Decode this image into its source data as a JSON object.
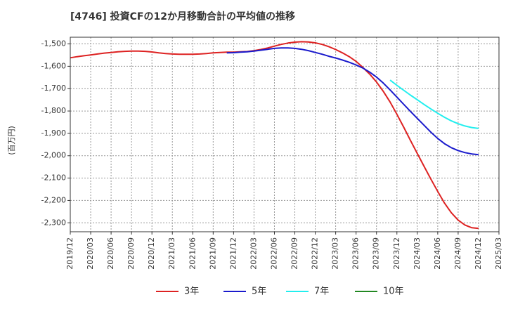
{
  "title": "[4746]  投資CFの12か月移動合計の平均値の推移",
  "chart_data": {
    "type": "line",
    "ylabel": "(百万円)",
    "ylim": [
      -2340,
      -1470
    ],
    "yticks": [
      -1500,
      -1600,
      -1700,
      -1800,
      -1900,
      -2000,
      -2100,
      -2200,
      -2300
    ],
    "ytick_labels": [
      "-1,500",
      "-1,600",
      "-1,700",
      "-1,800",
      "-1,900",
      "-2,000",
      "-2,100",
      "-2,200",
      "-2,300"
    ],
    "xticks": [
      "2019/12",
      "2020/03",
      "2020/06",
      "2020/09",
      "2020/12",
      "2021/03",
      "2021/06",
      "2021/09",
      "2021/12",
      "2022/03",
      "2022/06",
      "2022/09",
      "2022/12",
      "2023/03",
      "2023/06",
      "2023/09",
      "2023/12",
      "2024/03",
      "2024/06",
      "2024/09",
      "2024/12",
      "2025/03"
    ],
    "grid": true,
    "legend_position": "bottom",
    "series": [
      {
        "name": "3年",
        "color": "#dd2222",
        "start": "2019/12",
        "values": [
          -1562,
          -1557,
          -1553,
          -1549,
          -1545,
          -1541,
          -1538,
          -1535,
          -1533,
          -1532,
          -1532,
          -1533,
          -1536,
          -1540,
          -1543,
          -1545,
          -1546,
          -1546,
          -1546,
          -1545,
          -1543,
          -1540,
          -1538,
          -1537,
          -1537,
          -1535,
          -1534,
          -1530,
          -1525,
          -1518,
          -1510,
          -1502,
          -1496,
          -1492,
          -1490,
          -1491,
          -1495,
          -1502,
          -1512,
          -1525,
          -1540,
          -1557,
          -1578,
          -1605,
          -1635,
          -1670,
          -1712,
          -1760,
          -1815,
          -1872,
          -1932,
          -1990,
          -2048,
          -2105,
          -2160,
          -2212,
          -2255,
          -2288,
          -2310,
          -2322,
          -2325
        ]
      },
      {
        "name": "5年",
        "color": "#1a1acc",
        "start": "2021/11",
        "values": [
          -1540,
          -1539,
          -1537,
          -1535,
          -1532,
          -1528,
          -1524,
          -1520,
          -1518,
          -1518,
          -1520,
          -1524,
          -1530,
          -1538,
          -1546,
          -1555,
          -1563,
          -1572,
          -1582,
          -1594,
          -1608,
          -1626,
          -1648,
          -1675,
          -1706,
          -1738,
          -1770,
          -1802,
          -1833,
          -1864,
          -1895,
          -1923,
          -1946,
          -1964,
          -1977,
          -1986,
          -1992,
          -1995
        ]
      },
      {
        "name": "7年",
        "color": "#22eeee",
        "start": "2023/11",
        "values": [
          -1662,
          -1685,
          -1707,
          -1729,
          -1750,
          -1771,
          -1791,
          -1810,
          -1828,
          -1844,
          -1857,
          -1867,
          -1874,
          -1878
        ]
      },
      {
        "name": "10年",
        "color": "#228822",
        "start": "2024/12",
        "values": []
      }
    ]
  }
}
